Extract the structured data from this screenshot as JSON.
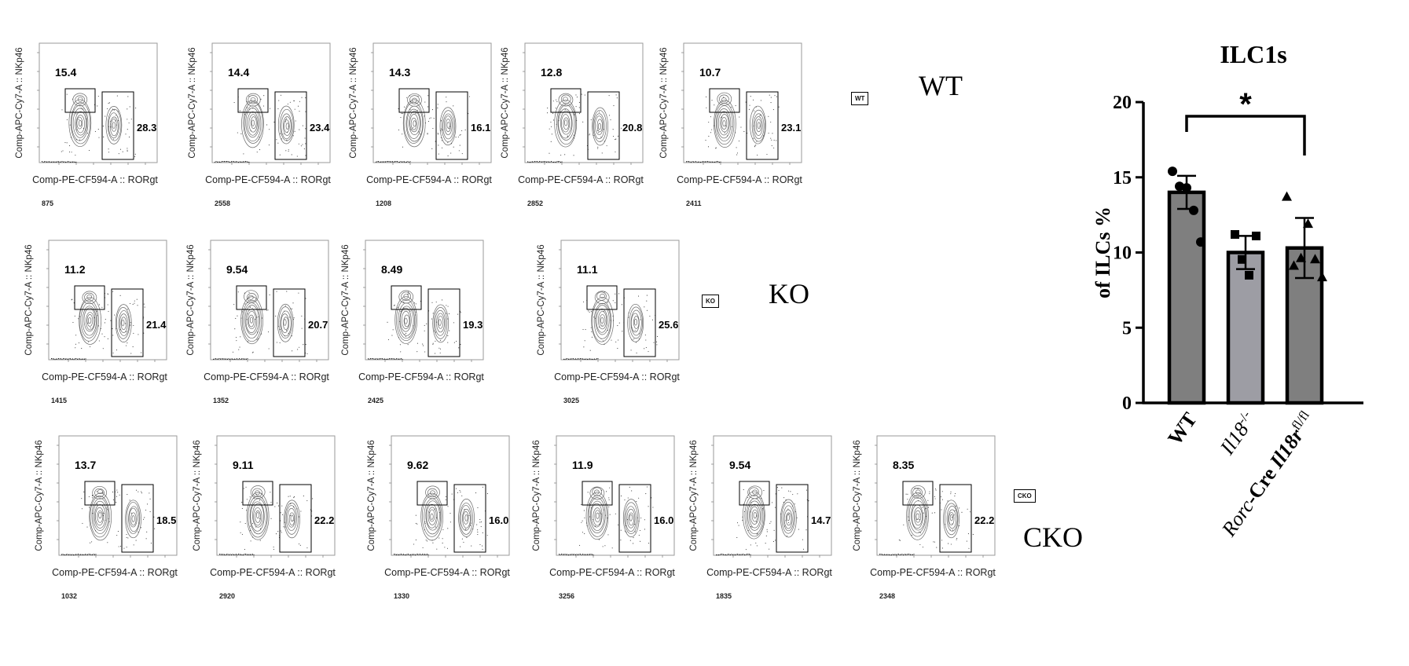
{
  "flow": {
    "x_axis_label": "Comp-PE-CF594-A :: RORgt",
    "y_axis_label": "Comp-APC-Cy7-A :: NKp46",
    "groups": [
      {
        "label": "WT",
        "tag": "WT",
        "plots": [
          {
            "left_gate": "15.4",
            "right_gate": "28.3",
            "count": "875"
          },
          {
            "left_gate": "14.4",
            "right_gate": "23.4",
            "count": "2558"
          },
          {
            "left_gate": "14.3",
            "right_gate": "16.1",
            "count": "1208"
          },
          {
            "left_gate": "12.8",
            "right_gate": "20.8",
            "count": "2852"
          },
          {
            "left_gate": "10.7",
            "right_gate": "23.1",
            "count": "2411"
          }
        ]
      },
      {
        "label": "KO",
        "tag": "KO",
        "plots": [
          {
            "left_gate": "11.2",
            "right_gate": "21.4",
            "count": "1415"
          },
          {
            "left_gate": "9.54",
            "right_gate": "20.7",
            "count": "1352"
          },
          {
            "left_gate": "8.49",
            "right_gate": "19.3",
            "count": "2425"
          },
          {
            "left_gate": "11.1",
            "right_gate": "25.6",
            "count": "3025"
          }
        ]
      },
      {
        "label": "CKO",
        "tag": "CKO",
        "plots": [
          {
            "left_gate": "13.7",
            "right_gate": "18.5",
            "count": "1032"
          },
          {
            "left_gate": "9.11",
            "right_gate": "22.2",
            "count": "2920"
          },
          {
            "left_gate": "9.62",
            "right_gate": "16.0",
            "count": "1330"
          },
          {
            "left_gate": "11.9",
            "right_gate": "16.0",
            "count": "3256"
          },
          {
            "left_gate": "9.54",
            "right_gate": "14.7",
            "count": "1835"
          },
          {
            "left_gate": "8.35",
            "right_gate": "22.2",
            "count": "2348"
          }
        ]
      }
    ]
  },
  "chart_data": {
    "type": "bar",
    "title": "ILC1s",
    "xlabel": "",
    "ylabel": "of ILCs %",
    "ylim": [
      0,
      20
    ],
    "yticks": [
      0,
      5,
      10,
      15,
      20
    ],
    "categories": [
      "WT",
      "Il18-/-",
      "Rorc-Cre Il18r fl/fl"
    ],
    "category_labels": [
      [
        {
          "t": "WT",
          "b": true,
          "i": false
        }
      ],
      [
        {
          "t": "Il18",
          "b": false,
          "i": true
        },
        {
          "t": "-/-",
          "b": false,
          "i": false,
          "sup": true
        }
      ],
      [
        {
          "t": "Rorc",
          "b": false,
          "i": true
        },
        {
          "t": "-Cre ",
          "b": true,
          "i": false
        },
        {
          "t": "Il18r",
          "b": true,
          "i": true
        },
        {
          "t": "fl/fl",
          "b": false,
          "i": false,
          "sup": true
        }
      ]
    ],
    "values": [
      14.0,
      10.0,
      10.3
    ],
    "errors": [
      1.1,
      1.1,
      2.0
    ],
    "points": [
      [
        15.4,
        14.4,
        14.3,
        12.8,
        10.7
      ],
      [
        11.2,
        9.54,
        8.49,
        11.1
      ],
      [
        13.7,
        9.11,
        9.62,
        11.9,
        9.54,
        8.35
      ]
    ],
    "point_markers": [
      "circle",
      "square",
      "triangle"
    ],
    "significance": {
      "from": 0,
      "to": 2,
      "label": "*"
    },
    "colors": {
      "bar_fill": "#7f7f7f",
      "bar_fill_alt": "#9d9da4",
      "bar_stroke": "#000000"
    },
    "grid": false,
    "legend": "none"
  }
}
